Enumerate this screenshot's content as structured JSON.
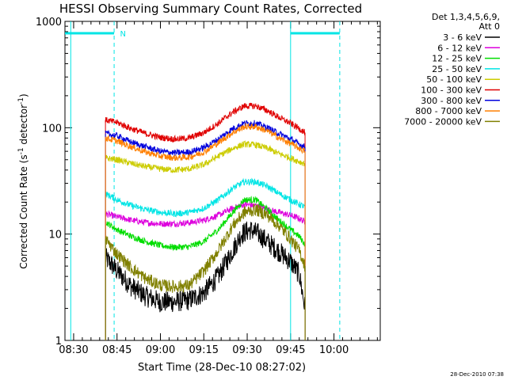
{
  "chart_data": {
    "type": "line",
    "title": "HESSI Observing Summary Count Rates, Corrected",
    "xlabel": "Start Time (28-Dec-10 08:27:02)",
    "ylabel_main": "Corrected Count Rate (s",
    "ylabel_sup1": "-1",
    "ylabel_mid": " detector",
    "ylabel_sup2": "-1",
    "ylabel_end": ")",
    "yscale": "log",
    "xlim_minutes": [
      507,
      616
    ],
    "ylim": [
      1,
      1000
    ],
    "x_ticks": [
      {
        "label": "08:30",
        "t": 510
      },
      {
        "label": "08:45",
        "t": 525
      },
      {
        "label": "09:00",
        "t": 540
      },
      {
        "label": "09:15",
        "t": 555
      },
      {
        "label": "09:30",
        "t": 570
      },
      {
        "label": "09:45",
        "t": 585
      },
      {
        "label": "10:00",
        "t": 600
      }
    ],
    "y_ticks": [
      {
        "label": "1",
        "v": 1
      },
      {
        "label": "10",
        "v": 10
      },
      {
        "label": "100",
        "v": 100
      },
      {
        "label": "1000",
        "v": 1000
      }
    ],
    "legend_header": [
      "Det 1,3,4,5,6,9,",
      "Att 0"
    ],
    "legend_position": "right",
    "series": [
      {
        "name": "3 - 6 keV",
        "color": "#000000",
        "points": [
          [
            521,
            6
          ],
          [
            525,
            4.5
          ],
          [
            530,
            3.2
          ],
          [
            535,
            2.6
          ],
          [
            540,
            2.3
          ],
          [
            545,
            2.3
          ],
          [
            550,
            2.4
          ],
          [
            555,
            2.8
          ],
          [
            560,
            4
          ],
          [
            565,
            7
          ],
          [
            568,
            10
          ],
          [
            571,
            11
          ],
          [
            574,
            10
          ],
          [
            578,
            8
          ],
          [
            582,
            6.5
          ],
          [
            585,
            5.5
          ],
          [
            588,
            4.2
          ],
          [
            590,
            2
          ]
        ]
      },
      {
        "name": "6 - 12 keV",
        "color": "#dd00dd",
        "points": [
          [
            521,
            15.5
          ],
          [
            525,
            14.5
          ],
          [
            530,
            13.5
          ],
          [
            535,
            12.8
          ],
          [
            540,
            12.5
          ],
          [
            545,
            12.5
          ],
          [
            550,
            12.8
          ],
          [
            555,
            13.5
          ],
          [
            560,
            15
          ],
          [
            565,
            17.5
          ],
          [
            569,
            19
          ],
          [
            573,
            18.5
          ],
          [
            577,
            17
          ],
          [
            581,
            16
          ],
          [
            585,
            15
          ],
          [
            588,
            14
          ],
          [
            590,
            13
          ]
        ]
      },
      {
        "name": "12 - 25 keV",
        "color": "#00dd00",
        "points": [
          [
            521,
            13
          ],
          [
            525,
            11
          ],
          [
            530,
            9.5
          ],
          [
            535,
            8.5
          ],
          [
            540,
            7.8
          ],
          [
            545,
            7.5
          ],
          [
            550,
            7.6
          ],
          [
            555,
            8.5
          ],
          [
            560,
            11
          ],
          [
            565,
            16
          ],
          [
            569,
            21
          ],
          [
            573,
            21
          ],
          [
            577,
            17
          ],
          [
            581,
            13.5
          ],
          [
            585,
            11
          ],
          [
            588,
            9.5
          ],
          [
            590,
            8
          ]
        ]
      },
      {
        "name": "25 - 50 keV",
        "color": "#00e5e5",
        "points": [
          [
            521,
            24
          ],
          [
            525,
            21
          ],
          [
            530,
            18.5
          ],
          [
            535,
            17
          ],
          [
            540,
            16
          ],
          [
            545,
            15.5
          ],
          [
            550,
            16
          ],
          [
            555,
            17.5
          ],
          [
            560,
            21
          ],
          [
            565,
            27
          ],
          [
            569,
            31
          ],
          [
            573,
            31
          ],
          [
            577,
            28
          ],
          [
            581,
            24
          ],
          [
            585,
            21
          ],
          [
            588,
            19
          ],
          [
            590,
            18
          ]
        ]
      },
      {
        "name": "50 - 100 keV",
        "color": "#cccc00",
        "points": [
          [
            521,
            52
          ],
          [
            525,
            50
          ],
          [
            530,
            46
          ],
          [
            535,
            43
          ],
          [
            540,
            41
          ],
          [
            545,
            40
          ],
          [
            550,
            41
          ],
          [
            555,
            45
          ],
          [
            560,
            54
          ],
          [
            565,
            64
          ],
          [
            569,
            70
          ],
          [
            573,
            69
          ],
          [
            577,
            64
          ],
          [
            581,
            57
          ],
          [
            585,
            52
          ],
          [
            588,
            48
          ],
          [
            590,
            46
          ]
        ]
      },
      {
        "name": "100 - 300 keV",
        "color": "#e00000",
        "points": [
          [
            521,
            118
          ],
          [
            525,
            112
          ],
          [
            530,
            98
          ],
          [
            535,
            88
          ],
          [
            540,
            81
          ],
          [
            545,
            78
          ],
          [
            550,
            80
          ],
          [
            555,
            90
          ],
          [
            560,
            110
          ],
          [
            565,
            140
          ],
          [
            569,
            160
          ],
          [
            573,
            160
          ],
          [
            577,
            145
          ],
          [
            581,
            125
          ],
          [
            585,
            110
          ],
          [
            588,
            98
          ],
          [
            590,
            90
          ]
        ]
      },
      {
        "name": "300 - 800 keV",
        "color": "#0000dd",
        "points": [
          [
            521,
            88
          ],
          [
            525,
            84
          ],
          [
            530,
            73
          ],
          [
            535,
            66
          ],
          [
            540,
            60
          ],
          [
            545,
            58
          ],
          [
            550,
            59
          ],
          [
            555,
            65
          ],
          [
            560,
            78
          ],
          [
            565,
            98
          ],
          [
            569,
            110
          ],
          [
            573,
            110
          ],
          [
            577,
            100
          ],
          [
            581,
            88
          ],
          [
            585,
            78
          ],
          [
            588,
            70
          ],
          [
            590,
            66
          ]
        ]
      },
      {
        "name": "800 - 7000 keV",
        "color": "#ff7f00",
        "points": [
          [
            521,
            80
          ],
          [
            525,
            75
          ],
          [
            530,
            66
          ],
          [
            535,
            59
          ],
          [
            540,
            54
          ],
          [
            545,
            52
          ],
          [
            550,
            53
          ],
          [
            555,
            59
          ],
          [
            560,
            72
          ],
          [
            565,
            90
          ],
          [
            569,
            102
          ],
          [
            573,
            102
          ],
          [
            577,
            93
          ],
          [
            581,
            80
          ],
          [
            585,
            71
          ],
          [
            588,
            64
          ],
          [
            590,
            60
          ]
        ]
      },
      {
        "name": "7000 - 20000 keV",
        "color": "#808000",
        "points": [
          [
            521,
            9
          ],
          [
            525,
            6.5
          ],
          [
            530,
            4.8
          ],
          [
            535,
            3.8
          ],
          [
            540,
            3.3
          ],
          [
            545,
            3.2
          ],
          [
            550,
            3.3
          ],
          [
            555,
            4.5
          ],
          [
            560,
            7
          ],
          [
            565,
            12
          ],
          [
            569,
            16
          ],
          [
            573,
            17
          ],
          [
            577,
            15
          ],
          [
            581,
            12
          ],
          [
            585,
            9
          ],
          [
            588,
            7
          ],
          [
            590,
            5
          ]
        ]
      }
    ],
    "vertical_markers": [
      {
        "t": 509,
        "style": "solid",
        "color": "#00e5e5"
      },
      {
        "t": 524,
        "style": "dashed",
        "color": "#00e5e5"
      },
      {
        "t": 585,
        "style": "solid",
        "color": "#00e5e5"
      },
      {
        "t": 602,
        "style": "dashed",
        "color": "#00e5e5"
      }
    ],
    "top_bars": [
      {
        "from": 507,
        "to": 524,
        "color": "#00e5e5"
      },
      {
        "from": 585,
        "to": 602,
        "color": "#00e5e5"
      }
    ],
    "annotations": [
      {
        "text": "N",
        "t": 525.5
      }
    ],
    "data_span": {
      "start": 521,
      "end": 590
    },
    "footer": "28-Dec-2010 07:38"
  }
}
